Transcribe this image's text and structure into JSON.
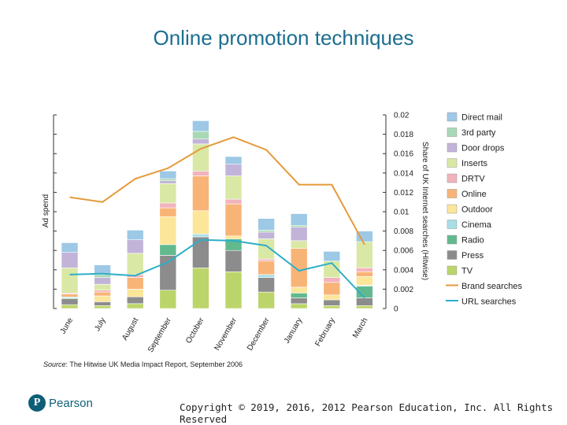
{
  "slide": {
    "title": "Online promotion techniques",
    "source_prefix": "Source",
    "source_text": ": The Hitwise UK Media Impact Report, September 2006",
    "logo_text": "Pearson",
    "logo_letter": "P",
    "copyright": "Copyright © 2019, 2016, 2012 Pearson Education, Inc. All Rights Reserved"
  },
  "colors": {
    "Direct mail": "#9dc8e6",
    "3rd party": "#a9d8b6",
    "Door drops": "#c2b4d9",
    "Inserts": "#d9e8a4",
    "DRTV": "#f1b3bc",
    "Online": "#f8b477",
    "Outdoor": "#fbe69a",
    "Cinema": "#a8dfe6",
    "Radio": "#62b98e",
    "Press": "#8c8c8c",
    "TV": "#bcd56a",
    "Brand searches": "#e59a3b",
    "URL searches": "#2eaec8",
    "title": "#1b6e8f"
  },
  "chart_data": {
    "type": "bar",
    "stacked": true,
    "categories": [
      "June",
      "July",
      "August",
      "September",
      "October",
      "November",
      "December",
      "January",
      "February",
      "March"
    ],
    "ylabel": "Ad spend",
    "y2label": "Share of UK Internet searches (Hitwise)",
    "y2lim": [
      0,
      0.02
    ],
    "y2ticks": [
      "0",
      "0.002",
      "0.004",
      "0.006",
      "0.008",
      "0.01",
      "0.012",
      "0.014",
      "0.016",
      "0.018",
      "0.02"
    ],
    "grid": false,
    "legend_position": "right",
    "series": [
      {
        "name": "TV",
        "values": [
          0.0004,
          0.0003,
          0.0005,
          0.0019,
          0.0042,
          0.0038,
          0.0017,
          0.0005,
          0.0003,
          0.0003
        ]
      },
      {
        "name": "Press",
        "values": [
          0.0006,
          0.0004,
          0.0007,
          0.0036,
          0.0032,
          0.0022,
          0.0015,
          0.0006,
          0.0006,
          0.0008
        ]
      },
      {
        "name": "Radio",
        "values": [
          0.0001,
          0.0,
          0.0,
          0.0011,
          0.0,
          0.0012,
          0.0,
          0.0005,
          0.0,
          0.0012
        ]
      },
      {
        "name": "Cinema",
        "values": [
          0.0001,
          0.0,
          0.0,
          0.0,
          0.0003,
          0.0,
          0.0003,
          0.0,
          0.0,
          0.0001
        ]
      },
      {
        "name": "Outdoor",
        "values": [
          0.0,
          0.0006,
          0.0008,
          0.0029,
          0.0024,
          0.0003,
          0.0,
          0.0006,
          0.0005,
          0.0009
        ]
      },
      {
        "name": "Online",
        "values": [
          0.0003,
          0.0004,
          0.0012,
          0.0009,
          0.0036,
          0.0033,
          0.0014,
          0.004,
          0.0013,
          0.0005
        ]
      },
      {
        "name": "DRTV",
        "values": [
          0.0001,
          0.0002,
          0.0003,
          0.0005,
          0.0005,
          0.0005,
          0.0002,
          0.0,
          0.0005,
          0.0004
        ]
      },
      {
        "name": "Inserts",
        "values": [
          0.0026,
          0.0006,
          0.0022,
          0.002,
          0.0028,
          0.0024,
          0.0021,
          0.0008,
          0.0017,
          0.0027
        ]
      },
      {
        "name": "Door drops",
        "values": [
          0.0016,
          0.0007,
          0.0014,
          0.0003,
          0.0005,
          0.0012,
          0.0007,
          0.0014,
          0.0,
          0.0
        ]
      },
      {
        "name": "3rd party",
        "values": [
          0.0,
          0.0003,
          0.0,
          0.0002,
          0.0008,
          0.0,
          0.0002,
          0.0002,
          0.0,
          0.0
        ]
      },
      {
        "name": "Direct mail",
        "values": [
          0.001,
          0.001,
          0.001,
          0.0008,
          0.0011,
          0.0008,
          0.0012,
          0.0012,
          0.001,
          0.0011
        ]
      }
    ],
    "lines": [
      {
        "name": "Brand searches",
        "values": [
          0.0115,
          0.011,
          0.0134,
          0.0145,
          0.0165,
          0.0177,
          0.0164,
          0.0128,
          0.0128,
          0.0066
        ]
      },
      {
        "name": "URL searches",
        "values": [
          0.0035,
          0.0036,
          0.0034,
          0.0048,
          0.0071,
          0.007,
          0.0065,
          0.0039,
          0.0047,
          0.0011
        ]
      }
    ]
  }
}
